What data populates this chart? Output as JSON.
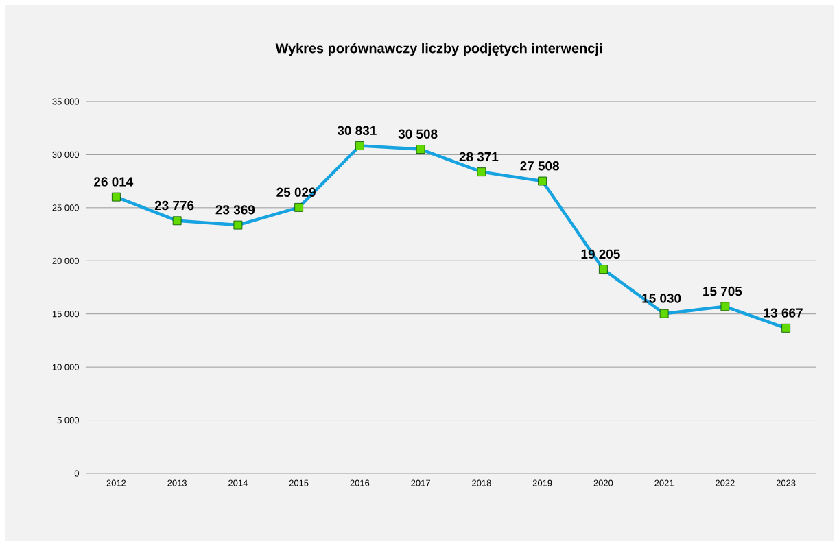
{
  "chart_data": {
    "type": "line",
    "title": "Wykres porównawczy liczby podjętych interwencji",
    "categories": [
      "2012",
      "2013",
      "2014",
      "2015",
      "2016",
      "2017",
      "2018",
      "2019",
      "2020",
      "2021",
      "2022",
      "2023"
    ],
    "series": [
      {
        "color": "#17a2e0",
        "values": [
          26014,
          23776,
          23369,
          25029,
          30831,
          30508,
          28371,
          27508,
          19205,
          15030,
          15705,
          13667
        ],
        "value_labels": [
          "26 014",
          "23 776",
          "23 369",
          "25 029",
          "30 831",
          "30 508",
          "28 371",
          "27 508",
          "19 205",
          "15 030",
          "15 705",
          "13 667"
        ]
      }
    ],
    "ylim": [
      0,
      35000
    ],
    "yticks": [
      {
        "value": 0,
        "label": "0"
      },
      {
        "value": 5000,
        "label": "5 000"
      },
      {
        "value": 10000,
        "label": "10 000"
      },
      {
        "value": 15000,
        "label": "15 000"
      },
      {
        "value": 20000,
        "label": "20 000"
      },
      {
        "value": 25000,
        "label": "25 000"
      },
      {
        "value": 30000,
        "label": "30 000"
      },
      {
        "value": 35000,
        "label": "35 000"
      }
    ],
    "grid": "y",
    "marker": "square"
  }
}
